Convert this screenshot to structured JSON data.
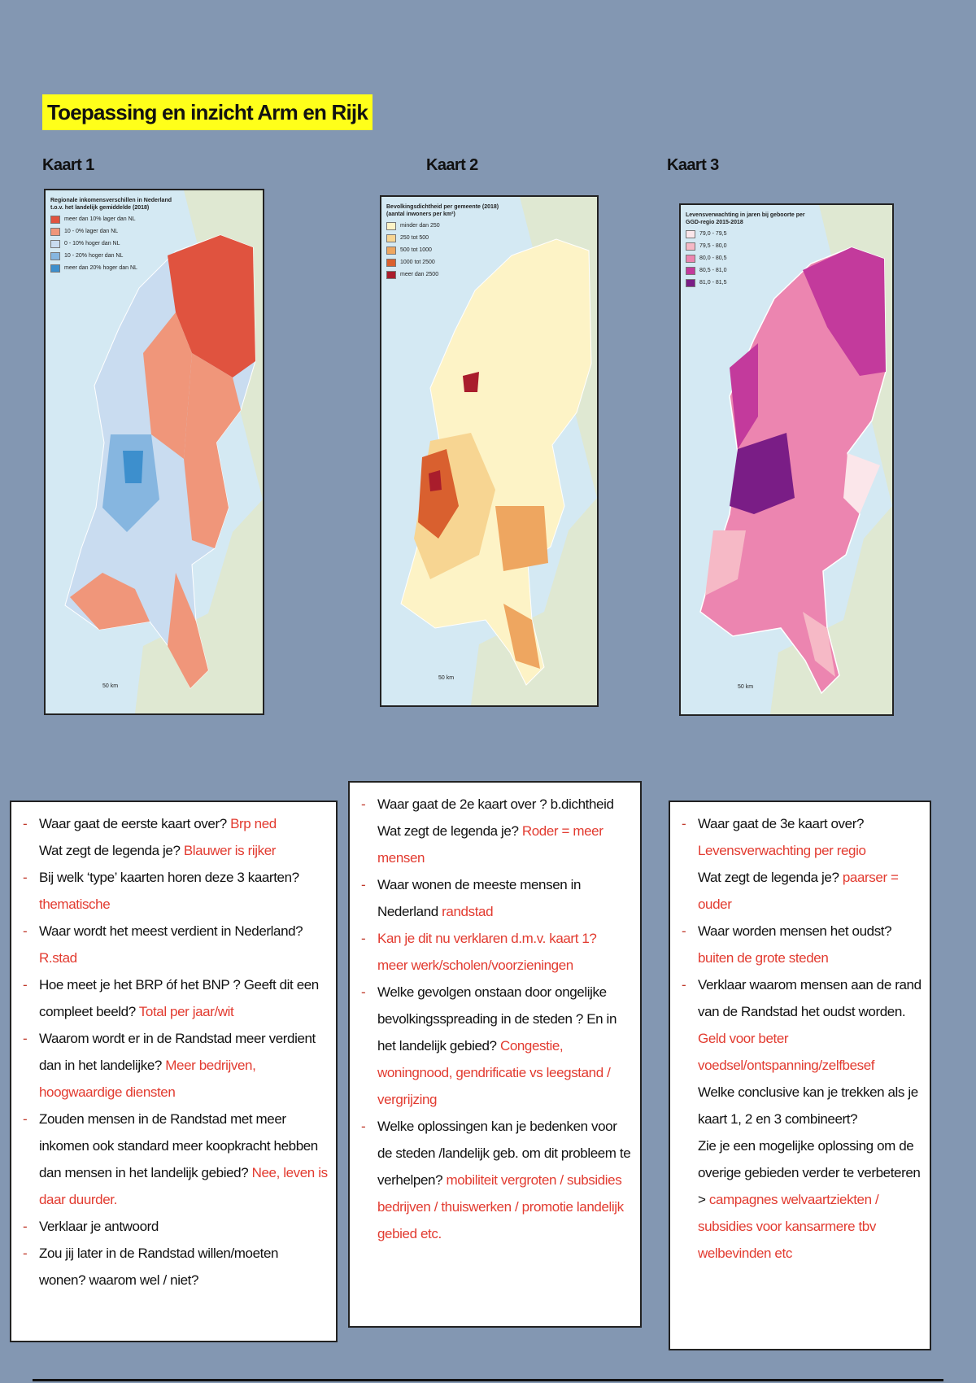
{
  "header": {
    "title": "Toepassing en inzicht Arm en Rijk"
  },
  "maps": [
    {
      "label": "Kaart 1",
      "legend_title": "Regionale inkomensverschillen in Nederland t.o.v. het landelijk gemiddelde (2018)",
      "legend": [
        {
          "text": "meer dan 10% lager dan NL",
          "color": "#e0533f"
        },
        {
          "text": "10 - 0% lager dan NL",
          "color": "#f0967a"
        },
        {
          "text": "0 - 10% hoger dan NL",
          "color": "#c9dcf0"
        },
        {
          "text": "10 - 20% hoger dan NL",
          "color": "#86b6e0"
        },
        {
          "text": "meer dan 20% hoger dan NL",
          "color": "#3d8fcd"
        }
      ],
      "scale": "50 km"
    },
    {
      "label": "Kaart 2",
      "legend_title": "Bevolkingsdichtheid per gemeente (2018) (aantal inwoners per km²)",
      "legend": [
        {
          "text": "minder dan 250",
          "color": "#fdf3c6"
        },
        {
          "text": "250 tot 500",
          "color": "#f7d592"
        },
        {
          "text": "500 tot 1000",
          "color": "#eea660"
        },
        {
          "text": "1000 tot 2500",
          "color": "#d9602f"
        },
        {
          "text": "meer dan 2500",
          "color": "#a91d2c"
        }
      ],
      "scale": "50 km"
    },
    {
      "label": "Kaart 3",
      "legend_title": "Levensverwachting in jaren bij geboorte per GGD-regio 2015-2018",
      "legend": [
        {
          "text": "79,0 - 79,5",
          "color": "#fbe6ea"
        },
        {
          "text": "79,5 - 80,0",
          "color": "#f6b9c6"
        },
        {
          "text": "80,0 - 80,5",
          "color": "#ec85b0"
        },
        {
          "text": "80,5 - 81,0",
          "color": "#c33a9c"
        },
        {
          "text": "81,0 - 81,5",
          "color": "#7a1d86"
        }
      ],
      "scale": "50 km"
    }
  ],
  "boxes": [
    {
      "items": [
        [
          {
            "q": "Waar gaat de eerste kaart over?",
            "a": "Brp ned"
          },
          {
            "q": "Wat zegt de legenda je?",
            "a": "Blauwer is rijker"
          }
        ],
        [
          {
            "q": "Bij welk ‘type’ kaarten horen deze 3 kaarten?",
            "a": "thematische"
          }
        ],
        [
          {
            "q": "Waar wordt het meest verdient in Nederland?",
            "a": "R.stad"
          }
        ],
        [
          {
            "q": "Hoe meet je het BRP óf het BNP ? Geeft dit een compleet beeld?",
            "a": "Total per jaar/wit"
          }
        ],
        [
          {
            "q": "Waarom wordt er in de Randstad meer verdient dan in het landelijke?",
            "a": "Meer bedrijven, hoogwaardige diensten"
          }
        ],
        [
          {
            "q": "Zouden mensen in de Randstad met meer inkomen ook standard meer koopkracht hebben dan mensen in het landelijk gebied?",
            "a": "Nee, leven is daar duurder."
          }
        ],
        [
          {
            "q": "Verklaar je antwoord"
          }
        ],
        [
          {
            "q": "Zou jij later in de Randstad willen/moeten wonen? waarom wel / niet?"
          }
        ]
      ]
    },
    {
      "items": [
        [
          {
            "q": "Waar gaat de 2e kaart over ? b.dichtheid"
          },
          {
            "q": "Wat zegt de legenda je?",
            "a": "Roder = meer mensen"
          }
        ],
        [
          {
            "q": "Waar wonen de meeste mensen in Nederland",
            "a": "randstad"
          }
        ],
        [
          {
            "a": "Kan je dit nu verklaren d.m.v. kaart 1?"
          },
          {
            "a": "meer werk/scholen/voorzieningen"
          }
        ],
        [
          {
            "q": "Welke gevolgen onstaan door ongelijke bevolkingsspreading in de steden ? En in het landelijk gebied?",
            "a": "Congestie, woningnood, gendrificatie vs leegstand / vergrijzing"
          }
        ],
        [
          {
            "q": "Welke oplossingen kan je bedenken voor de steden /landelijk geb. om dit probleem te verhelpen?",
            "a": "mobiliteit vergroten / subsidies bedrijven / thuiswerken / promotie landelijk gebied etc."
          }
        ]
      ]
    },
    {
      "items": [
        [
          {
            "q": "Waar gaat de 3e kaart over?",
            "a": "Levensverwachting per regio"
          },
          {
            "q": "Wat zegt de legenda je?",
            "a": "paarser = ouder"
          }
        ],
        [
          {
            "q": "Waar worden mensen het oudst?",
            "a": "buiten de grote steden"
          }
        ],
        [
          {
            "q": "Verklaar waarom mensen aan de rand van de Randstad het oudst worden.",
            "a": "Geld voor beter voedsel/ontspanning/zelfbesef"
          },
          {
            "q": "Welke conclusive kan je trekken als je kaart 1, 2 en 3 combineert?"
          },
          {
            "q": "Zie je een mogelijke oplossing om de overige gebieden verder te verbeteren >",
            "a": "campagnes welvaartziekten / subsidies voor kansarmere tbv welbevinden etc"
          }
        ]
      ]
    }
  ]
}
